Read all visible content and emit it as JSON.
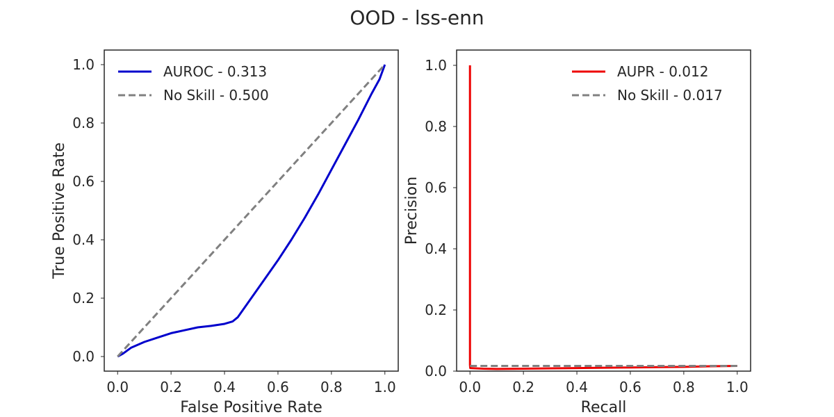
{
  "figure": {
    "title": "OOD - lss-enn"
  },
  "chart_data": [
    {
      "type": "line",
      "xlabel": "False Positive Rate",
      "ylabel": "True Positive Rate",
      "xlim": [
        -0.05,
        1.05
      ],
      "ylim": [
        -0.05,
        1.05
      ],
      "xticks": [
        "0.0",
        "0.2",
        "0.4",
        "0.6",
        "0.8",
        "1.0"
      ],
      "yticks": [
        "0.0",
        "0.2",
        "0.4",
        "0.6",
        "0.8",
        "1.0"
      ],
      "grid": false,
      "legend_position": "upper-left",
      "series": [
        {
          "name": "AUROC - 0.313",
          "color": "#0000cc",
          "dash": "solid",
          "x": [
            0.0,
            0.02,
            0.05,
            0.1,
            0.15,
            0.2,
            0.25,
            0.3,
            0.35,
            0.4,
            0.43,
            0.45,
            0.5,
            0.55,
            0.6,
            0.65,
            0.7,
            0.75,
            0.8,
            0.85,
            0.9,
            0.95,
            0.98,
            1.0
          ],
          "y": [
            0.0,
            0.01,
            0.03,
            0.05,
            0.065,
            0.08,
            0.09,
            0.1,
            0.105,
            0.112,
            0.12,
            0.135,
            0.2,
            0.265,
            0.33,
            0.4,
            0.475,
            0.555,
            0.64,
            0.725,
            0.81,
            0.9,
            0.95,
            1.0
          ]
        },
        {
          "name": "No Skill - 0.500",
          "color": "#808080",
          "dash": "dashed",
          "x": [
            0.0,
            1.0
          ],
          "y": [
            0.0,
            1.0
          ]
        }
      ]
    },
    {
      "type": "line",
      "xlabel": "Recall",
      "ylabel": "Precision",
      "xlim": [
        -0.05,
        1.05
      ],
      "ylim": [
        0.0,
        1.05
      ],
      "xticks": [
        "0.0",
        "0.2",
        "0.4",
        "0.6",
        "0.8",
        "1.0"
      ],
      "yticks": [
        "0.0",
        "0.2",
        "0.4",
        "0.6",
        "0.8",
        "1.0"
      ],
      "grid": false,
      "legend_position": "upper-right",
      "series": [
        {
          "name": "AUPR - 0.012",
          "color": "#ee0000",
          "dash": "solid",
          "x": [
            0.0,
            0.0,
            0.001,
            0.05,
            0.1,
            0.2,
            0.3,
            0.4,
            0.5,
            0.6,
            0.7,
            0.8,
            0.9,
            1.0
          ],
          "y": [
            1.0,
            0.02,
            0.01,
            0.008,
            0.007,
            0.008,
            0.009,
            0.01,
            0.011,
            0.012,
            0.013,
            0.014,
            0.016,
            0.017
          ]
        },
        {
          "name": "No Skill - 0.017",
          "color": "#808080",
          "dash": "dashed",
          "x": [
            0.0,
            1.0
          ],
          "y": [
            0.017,
            0.017
          ]
        }
      ]
    }
  ]
}
